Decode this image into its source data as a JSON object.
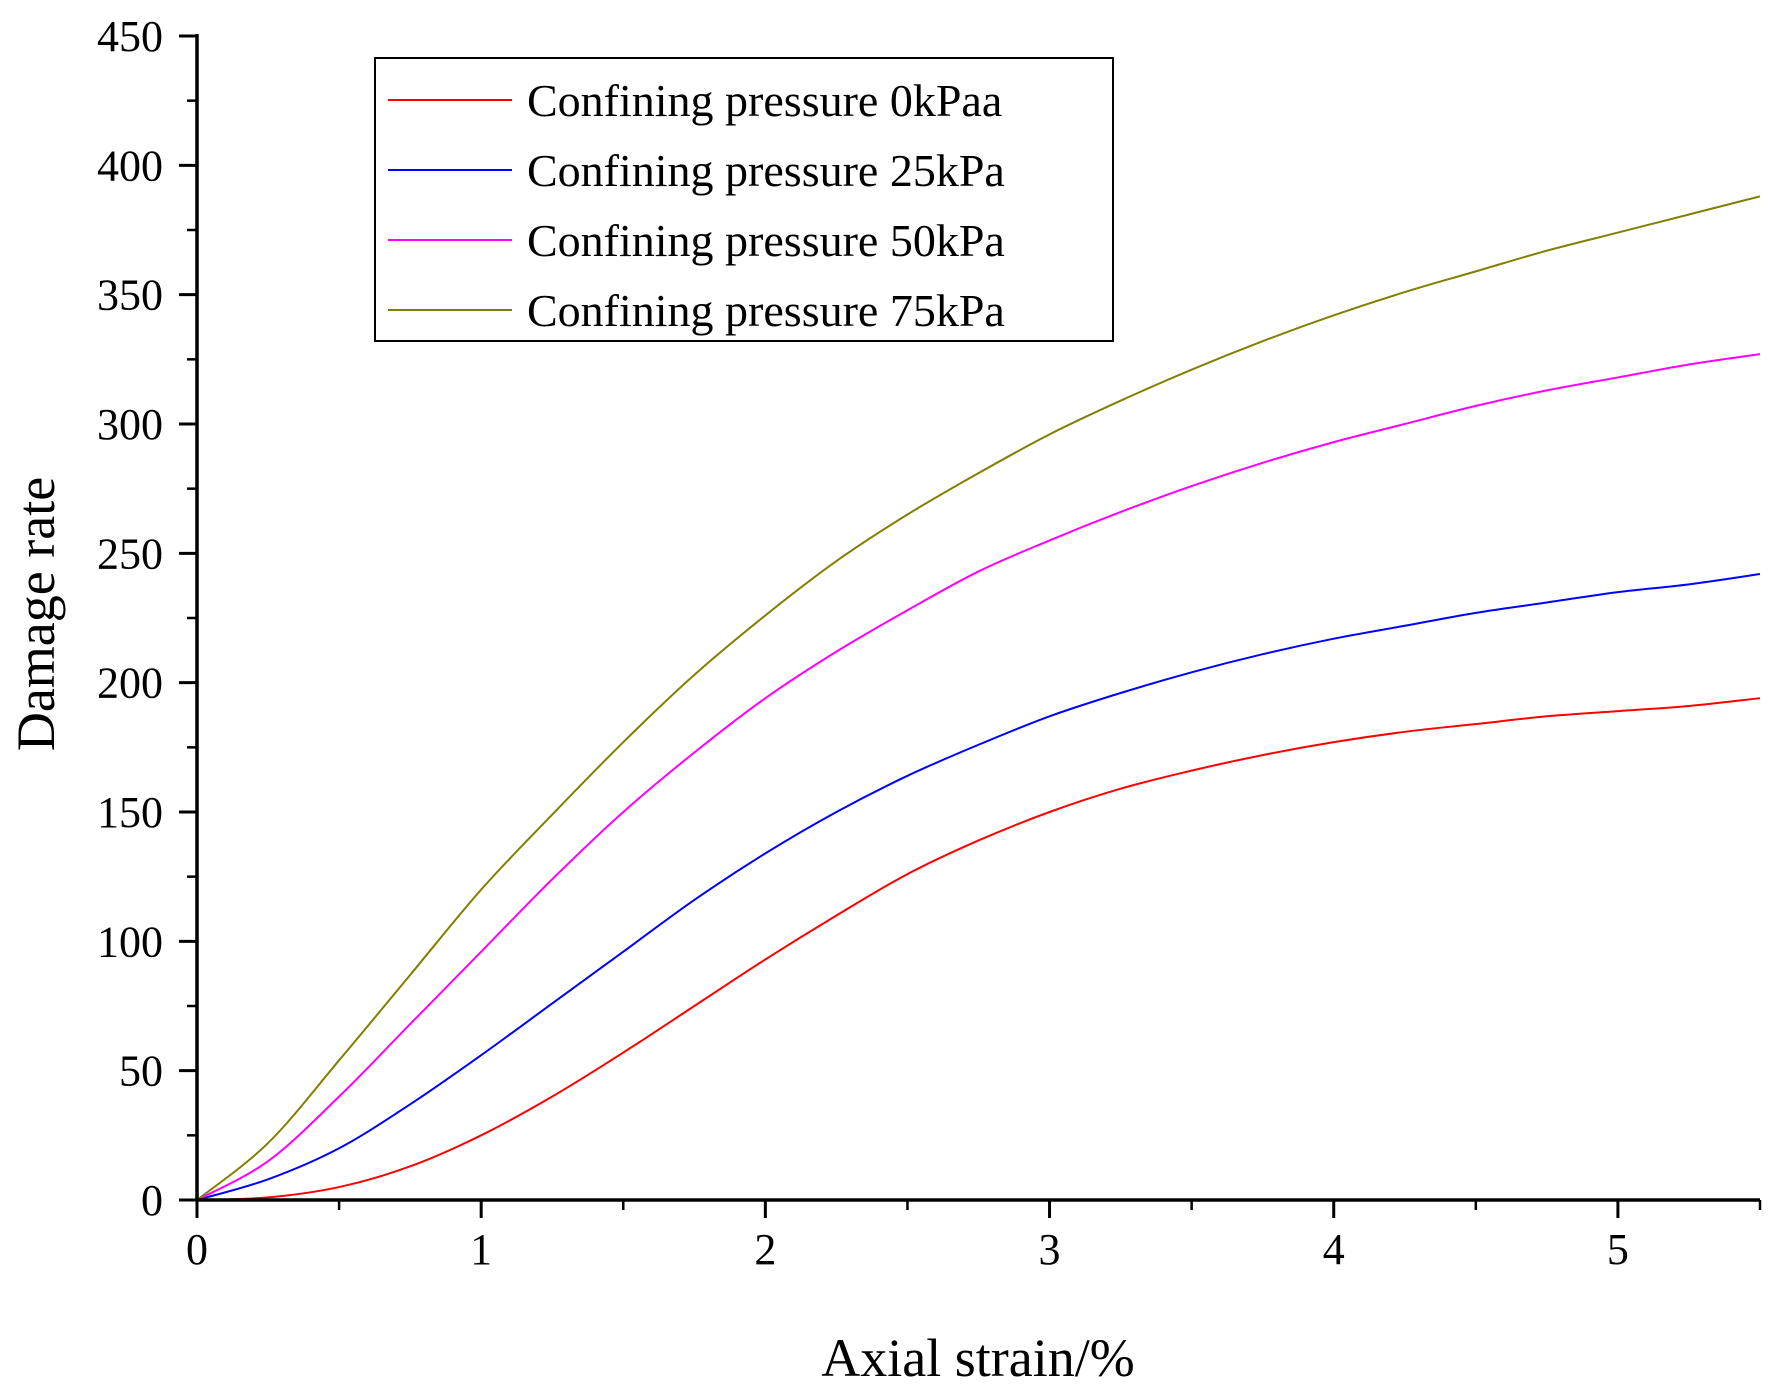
{
  "chart_data": {
    "type": "line",
    "title": "",
    "xlabel": "Axial strain/%",
    "ylabel": "Damage rate",
    "xlim": [
      0,
      5.5
    ],
    "ylim": [
      0,
      450
    ],
    "x_ticks": [
      0,
      1,
      2,
      3,
      4,
      5
    ],
    "y_ticks": [
      0,
      50,
      100,
      150,
      200,
      250,
      300,
      350,
      400,
      450
    ],
    "grid": false,
    "legend_position": "top-left",
    "x": [
      0,
      0.25,
      0.5,
      0.75,
      1.0,
      1.25,
      1.5,
      1.75,
      2.0,
      2.25,
      2.5,
      2.75,
      3.0,
      3.25,
      3.5,
      3.75,
      4.0,
      4.25,
      4.5,
      4.75,
      5.0,
      5.25,
      5.5
    ],
    "series": [
      {
        "name": "Confining pressure 0kPaa",
        "color": "#ff0000",
        "values": [
          0,
          1,
          5,
          13,
          25,
          40,
          57,
          75,
          93,
          110,
          126,
          139,
          150,
          159,
          166,
          172,
          177,
          181,
          184,
          187,
          189,
          191,
          194
        ]
      },
      {
        "name": "Confining pressure 25kPa",
        "color": "#0000ff",
        "values": [
          0,
          8,
          20,
          37,
          56,
          76,
          96,
          116,
          134,
          150,
          164,
          176,
          187,
          196,
          204,
          211,
          217,
          222,
          227,
          231,
          235,
          238,
          242
        ]
      },
      {
        "name": "Confining pressure 50kPa",
        "color": "#ff00ff",
        "values": [
          0,
          15,
          40,
          68,
          96,
          124,
          150,
          173,
          194,
          212,
          228,
          243,
          255,
          266,
          276,
          285,
          293,
          300,
          307,
          313,
          318,
          323,
          327
        ]
      },
      {
        "name": "Confining pressure 75kPa",
        "color": "#808000",
        "values": [
          0,
          22,
          54,
          87,
          120,
          149,
          177,
          203,
          226,
          247,
          265,
          281,
          296,
          309,
          321,
          332,
          342,
          351,
          359,
          367,
          374,
          381,
          388
        ]
      }
    ]
  }
}
